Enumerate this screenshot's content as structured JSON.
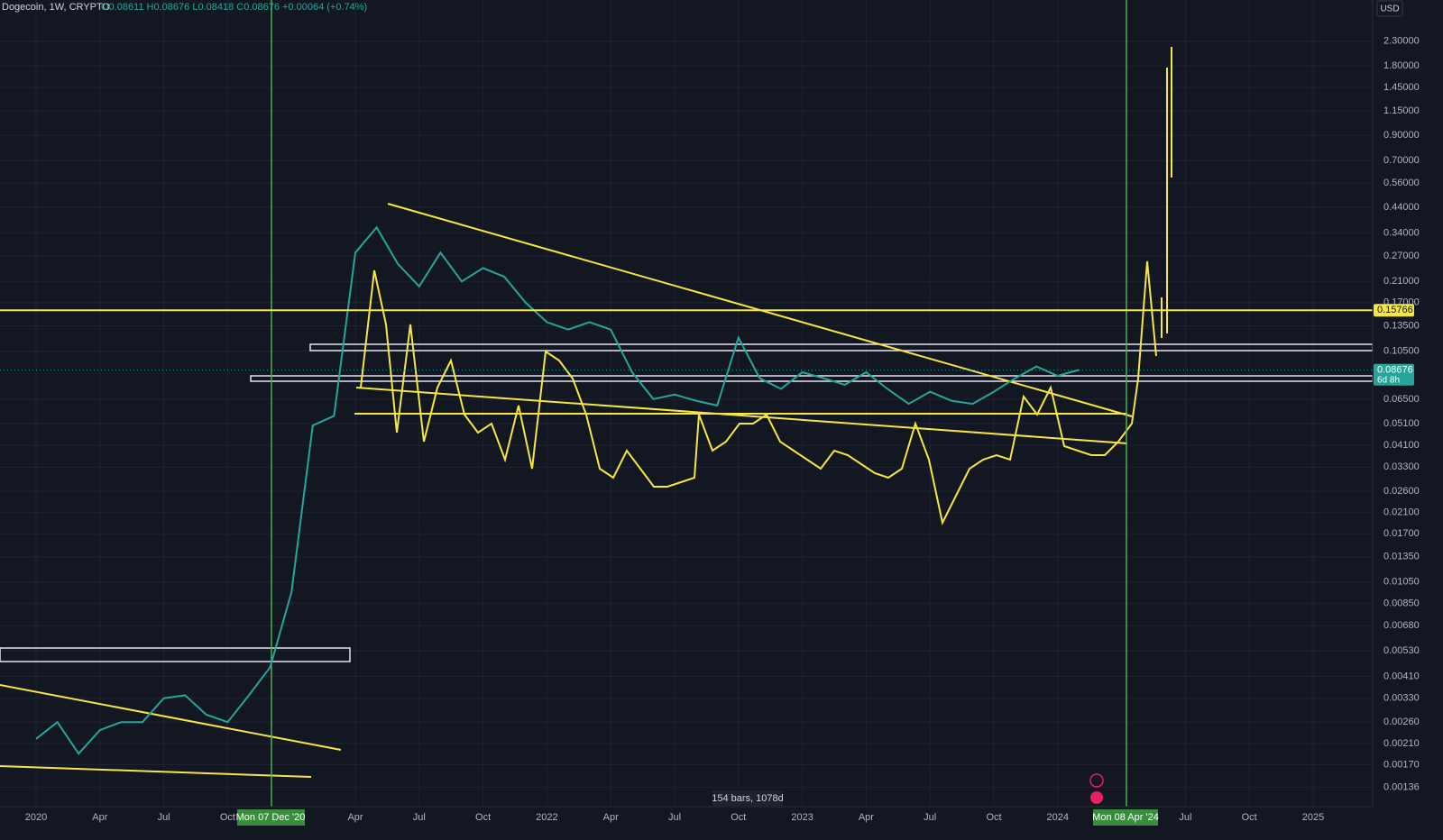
{
  "chart_data": {
    "type": "line",
    "title": "Dogecoin, 1W, CRYPTO",
    "legend_text": "O0.08611 H0.08676 L0.08418 C0.08676 +0.00064 (+0.74%)",
    "currency": "USD",
    "log_scale": true,
    "grid": true,
    "color": "#26a69a",
    "x": [
      "2020-01",
      "2020-02",
      "2020-03",
      "2020-04",
      "2020-05",
      "2020-06",
      "2020-07",
      "2020-08",
      "2020-09",
      "2020-10",
      "2020-11",
      "2020-12",
      "2021-01",
      "2021-02",
      "2021-03",
      "2021-04",
      "2021-05",
      "2021-06",
      "2021-07",
      "2021-08",
      "2021-09",
      "2021-10",
      "2021-11",
      "2021-12",
      "2022-01",
      "2022-02",
      "2022-03",
      "2022-04",
      "2022-05",
      "2022-06",
      "2022-07",
      "2022-08",
      "2022-09",
      "2022-10",
      "2022-11",
      "2022-12",
      "2023-01",
      "2023-02",
      "2023-03",
      "2023-04",
      "2023-05",
      "2023-06",
      "2023-07",
      "2023-08",
      "2023-09",
      "2023-10",
      "2023-11",
      "2023-12",
      "2024-01",
      "2024-02"
    ],
    "values": [
      0.0022,
      0.0026,
      0.0019,
      0.0024,
      0.0026,
      0.0026,
      0.0033,
      0.0034,
      0.0028,
      0.0026,
      0.0034,
      0.0045,
      0.0095,
      0.05,
      0.055,
      0.28,
      0.36,
      0.25,
      0.2,
      0.28,
      0.21,
      0.24,
      0.22,
      0.17,
      0.14,
      0.13,
      0.14,
      0.13,
      0.085,
      0.065,
      0.068,
      0.064,
      0.061,
      0.12,
      0.08,
      0.072,
      0.085,
      0.08,
      0.075,
      0.085,
      0.072,
      0.062,
      0.07,
      0.064,
      0.062,
      0.07,
      0.08,
      0.09,
      0.082,
      0.087
    ],
    "x_labels": [
      "2020",
      "Apr",
      "Jul",
      "Oct",
      null,
      "Apr",
      "Jul",
      "Oct",
      "2022",
      "Apr",
      "Jul",
      "Oct",
      "2023",
      "Apr",
      "Jul",
      "Oct",
      "2024",
      null,
      "Jul",
      "Oct",
      "2025"
    ],
    "markers": [
      "Mon 07 Dec '20",
      "Mon 08 Apr '24"
    ],
    "ylim": [
      0.00112,
      3.47
    ],
    "yticks": [
      {
        "value": 2.3,
        "label": "2.30000"
      },
      {
        "value": 1.8,
        "label": "1.80000"
      },
      {
        "value": 1.45,
        "label": "1.45000"
      },
      {
        "value": 1.15,
        "label": "1.15000"
      },
      {
        "value": 0.9,
        "label": "0.90000"
      },
      {
        "value": 0.7,
        "label": "0.70000"
      },
      {
        "value": 0.56,
        "label": "0.56000"
      },
      {
        "value": 0.44,
        "label": "0.44000"
      },
      {
        "value": 0.34,
        "label": "0.34000"
      },
      {
        "value": 0.27,
        "label": "0.27000"
      },
      {
        "value": 0.21,
        "label": "0.21000"
      },
      {
        "value": 0.17,
        "label": "0.17000"
      },
      {
        "value": 0.135,
        "label": "0.13500"
      },
      {
        "value": 0.105,
        "label": "0.10500"
      },
      {
        "value": 0.065,
        "label": "0.06500"
      },
      {
        "value": 0.051,
        "label": "0.05100"
      },
      {
        "value": 0.041,
        "label": "0.04100"
      },
      {
        "value": 0.033,
        "label": "0.03300"
      },
      {
        "value": 0.026,
        "label": "0.02600"
      },
      {
        "value": 0.021,
        "label": "0.02100"
      },
      {
        "value": 0.017,
        "label": "0.01700"
      },
      {
        "value": 0.0135,
        "label": "0.01350"
      },
      {
        "value": 0.0105,
        "label": "0.01050"
      },
      {
        "value": 0.0085,
        "label": "0.00850"
      },
      {
        "value": 0.0068,
        "label": "0.00680"
      },
      {
        "value": 0.0053,
        "label": "0.00530"
      },
      {
        "value": 0.0041,
        "label": "0.00410"
      },
      {
        "value": 0.0033,
        "label": "0.00330"
      },
      {
        "value": 0.0026,
        "label": "0.00260"
      },
      {
        "value": 0.0021,
        "label": "0.00210"
      },
      {
        "value": 0.0017,
        "label": "0.00170"
      },
      {
        "value": 0.00136,
        "label": "0.00136"
      }
    ],
    "price_line": 0.15766,
    "price_line_color": "#f5e642",
    "last_price": 0.08676,
    "last_price_color": "#26a69a",
    "countdown": "6d 8h",
    "range_info": "154 bars, 1078d"
  }
}
